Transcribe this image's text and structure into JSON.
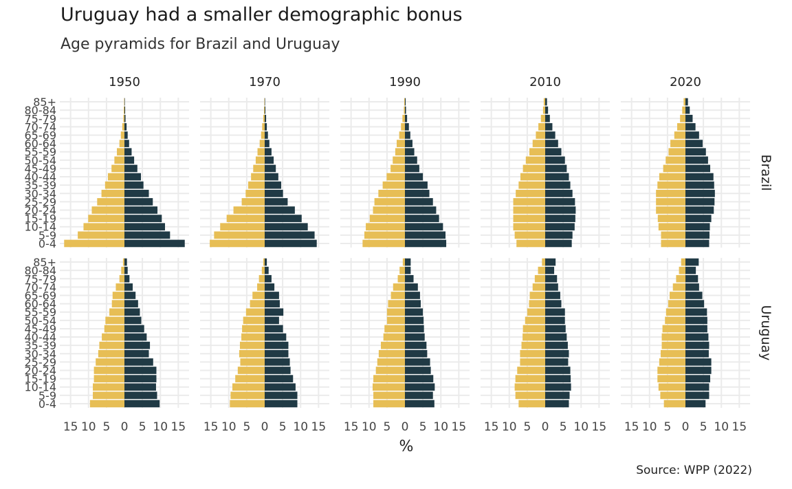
{
  "title": "Uruguay had a smaller demographic bonus",
  "subtitle": "Age pyramids for Brazil and Uruguay",
  "caption": "Source: WPP (2022)",
  "chart_data": {
    "type": "bar",
    "orientation": "horizontal",
    "pyramid": true,
    "xlabel": "%",
    "x_ticks": [
      -15,
      -10,
      -5,
      0,
      5,
      10,
      15
    ],
    "x_tick_labels": [
      "15",
      "10",
      "5",
      "0",
      "5",
      "10",
      "15"
    ],
    "xlim": [
      -18,
      18
    ],
    "grid": true,
    "legend": "none",
    "colors": {
      "left": "#E7BE55",
      "right": "#203A45",
      "grid": "#EBEBEB"
    },
    "years": [
      "1950",
      "1970",
      "1990",
      "2010",
      "2020"
    ],
    "countries": [
      "Brazil",
      "Uruguay"
    ],
    "age_groups": [
      "0-4",
      "5-9",
      "10-14",
      "15-19",
      "20-24",
      "25-29",
      "30-34",
      "35-39",
      "40-44",
      "45-49",
      "50-54",
      "55-59",
      "60-64",
      "65-69",
      "70-74",
      "75-79",
      "80-84",
      "85+"
    ],
    "panels": [
      {
        "country": "Brazil",
        "year": "1950",
        "left": [
          16.8,
          13.0,
          11.4,
          10.1,
          9.1,
          7.6,
          6.4,
          5.4,
          4.6,
          3.6,
          2.8,
          2.1,
          1.4,
          1.0,
          0.6,
          0.3,
          0.2,
          0.1
        ],
        "right": [
          16.8,
          12.7,
          11.3,
          10.4,
          9.2,
          7.9,
          6.8,
          5.3,
          4.6,
          3.6,
          2.7,
          2.0,
          1.3,
          0.9,
          0.6,
          0.3,
          0.2,
          0.1
        ]
      },
      {
        "country": "Brazil",
        "year": "1970",
        "left": [
          15.3,
          14.1,
          12.4,
          10.6,
          8.7,
          6.4,
          5.3,
          4.6,
          3.8,
          3.2,
          2.5,
          2.0,
          1.4,
          1.0,
          0.7,
          0.4,
          0.2,
          0.1
        ],
        "right": [
          14.5,
          13.9,
          12.0,
          10.3,
          8.4,
          6.4,
          5.1,
          4.6,
          3.8,
          3.1,
          2.5,
          1.9,
          1.3,
          0.9,
          0.6,
          0.4,
          0.2,
          0.1
        ]
      },
      {
        "country": "Brazil",
        "year": "1990",
        "left": [
          11.8,
          11.3,
          10.9,
          9.8,
          8.9,
          8.5,
          7.4,
          6.2,
          5.1,
          4.0,
          3.4,
          2.7,
          2.3,
          1.6,
          1.1,
          0.7,
          0.3,
          0.2
        ],
        "right": [
          11.5,
          11.3,
          10.6,
          9.5,
          8.7,
          7.8,
          6.8,
          6.3,
          5.0,
          4.0,
          3.4,
          2.6,
          2.1,
          1.5,
          1.1,
          0.6,
          0.3,
          0.2
        ]
      },
      {
        "country": "Brazil",
        "year": "2010",
        "left": [
          8.0,
          8.5,
          8.9,
          8.9,
          8.9,
          8.9,
          8.2,
          7.4,
          6.9,
          6.2,
          5.4,
          4.4,
          3.5,
          2.6,
          1.9,
          1.2,
          0.6,
          0.4
        ],
        "right": [
          7.4,
          7.6,
          8.2,
          8.4,
          8.5,
          8.3,
          7.6,
          7.0,
          6.6,
          6.0,
          5.5,
          4.5,
          3.6,
          2.8,
          2.0,
          1.3,
          0.8,
          0.5
        ]
      },
      {
        "country": "Brazil",
        "year": "2020",
        "left": [
          6.8,
          6.8,
          7.5,
          7.7,
          8.2,
          8.2,
          8.2,
          7.8,
          7.3,
          6.2,
          5.5,
          4.7,
          4.2,
          3.1,
          2.3,
          1.5,
          0.9,
          0.5
        ],
        "right": [
          6.6,
          6.7,
          6.8,
          7.2,
          7.9,
          8.1,
          8.2,
          8.0,
          7.8,
          6.9,
          6.3,
          5.7,
          4.8,
          3.8,
          2.8,
          2.0,
          1.2,
          0.7
        ]
      },
      {
        "country": "Uruguay",
        "year": "1950",
        "left": [
          9.6,
          8.8,
          8.8,
          8.5,
          8.5,
          8.0,
          7.3,
          7.0,
          6.3,
          5.6,
          5.3,
          4.2,
          3.5,
          3.3,
          2.4,
          1.4,
          0.9,
          0.4
        ],
        "right": [
          9.8,
          9.1,
          8.8,
          8.9,
          8.9,
          8.0,
          6.8,
          7.1,
          6.2,
          5.5,
          4.7,
          4.3,
          3.8,
          3.1,
          2.3,
          1.4,
          0.9,
          0.7
        ]
      },
      {
        "country": "Uruguay",
        "year": "1970",
        "left": [
          9.7,
          9.5,
          9.0,
          8.2,
          7.5,
          6.8,
          7.1,
          6.9,
          6.5,
          6.3,
          6.0,
          5.2,
          4.1,
          3.4,
          2.1,
          1.6,
          0.8,
          0.4
        ],
        "right": [
          9.1,
          9.1,
          8.6,
          7.9,
          7.2,
          7.0,
          6.6,
          6.6,
          6.0,
          5.1,
          4.0,
          5.2,
          4.2,
          4.0,
          2.7,
          1.9,
          1.1,
          0.6
        ]
      },
      {
        "country": "Uruguay",
        "year": "1990",
        "left": [
          8.8,
          8.8,
          9.0,
          8.8,
          8.1,
          7.7,
          7.3,
          6.7,
          6.0,
          5.7,
          5.0,
          5.0,
          4.7,
          3.9,
          3.3,
          2.0,
          1.5,
          0.6
        ],
        "right": [
          8.2,
          7.8,
          8.3,
          7.9,
          7.2,
          7.0,
          6.2,
          6.0,
          5.5,
          5.3,
          5.2,
          5.0,
          4.4,
          4.2,
          3.6,
          2.4,
          1.6,
          1.6
        ]
      },
      {
        "country": "Uruguay",
        "year": "2010",
        "left": [
          7.4,
          8.3,
          8.5,
          8.3,
          7.8,
          7.0,
          7.0,
          6.6,
          6.3,
          6.2,
          5.6,
          5.0,
          4.5,
          4.3,
          3.5,
          2.9,
          2.0,
          0.9
        ],
        "right": [
          6.6,
          6.8,
          7.2,
          7.1,
          7.0,
          6.4,
          6.6,
          6.3,
          6.0,
          5.7,
          5.5,
          5.5,
          4.5,
          4.2,
          3.6,
          3.3,
          2.5,
          2.9
        ]
      },
      {
        "country": "Uruguay",
        "year": "2020",
        "left": [
          6.0,
          7.0,
          7.5,
          7.8,
          7.8,
          7.3,
          6.9,
          6.6,
          6.6,
          6.4,
          5.7,
          5.4,
          4.8,
          4.4,
          3.5,
          2.6,
          1.8,
          1.2
        ],
        "right": [
          5.6,
          6.6,
          6.6,
          6.9,
          7.2,
          7.2,
          6.5,
          6.6,
          6.4,
          6.1,
          6.1,
          6.0,
          5.2,
          4.7,
          3.8,
          3.5,
          2.9,
          3.7
        ]
      }
    ]
  }
}
